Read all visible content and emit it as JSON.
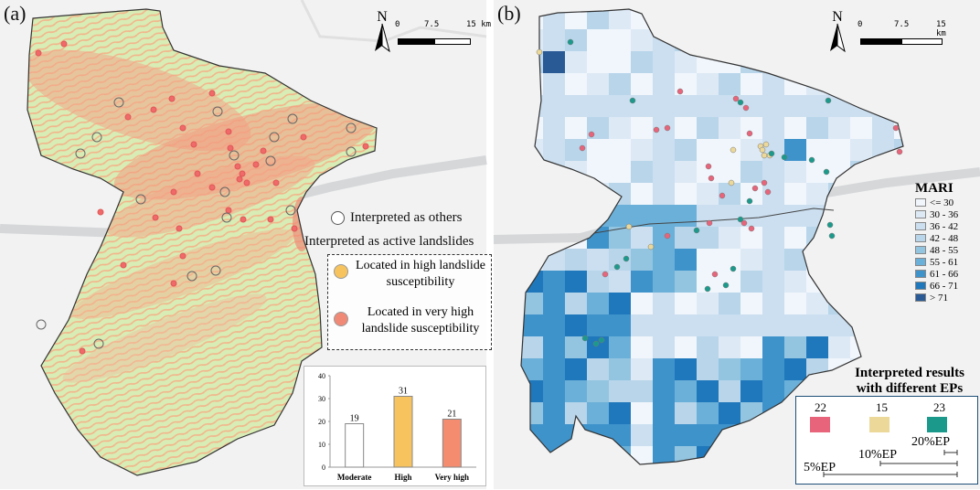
{
  "panels": {
    "a": {
      "label": "(a)",
      "north": "N",
      "scale": {
        "ticks": [
          "0",
          "7.5",
          "15 km"
        ]
      },
      "legend": {
        "others": "Interpreted  as others",
        "active_title": "Interpreted  as active landslides",
        "high": "Located in high landslide susceptibility",
        "high_line1": "Located in high landslide",
        "high_line2": "susceptibility",
        "very_high_line1": "Located in very high",
        "very_high_line2": "landslide susceptibility"
      },
      "colors": {
        "high": "#f6c35f",
        "very_high": "#f08a77",
        "others": "#ffffff",
        "base": "#d6ecb4",
        "hotspot": "#f39b80"
      }
    },
    "b": {
      "label": "(b)",
      "north": "N",
      "scale": {
        "ticks": [
          "0",
          "7.5",
          "15 km"
        ]
      },
      "mari_legend": {
        "title": "MARI",
        "classes": [
          {
            "label": "<= 30",
            "color": "#f1f6fc"
          },
          {
            "label": "30 - 36",
            "color": "#dde9f5"
          },
          {
            "label": "36 - 42",
            "color": "#cbdff0"
          },
          {
            "label": "42 - 48",
            "color": "#b8d5ea"
          },
          {
            "label": "48 - 55",
            "color": "#93c5e1"
          },
          {
            "label": "55 - 61",
            "color": "#6bb0d8"
          },
          {
            "label": "61 - 66",
            "color": "#3f93cb"
          },
          {
            "label": "66 - 71",
            "color": "#1f78bb"
          },
          {
            "label": "> 71",
            "color": "#2a5a96"
          }
        ]
      },
      "ep_title_line1": "Interpreted results",
      "ep_title_line2": "with different EPs",
      "ep_counts": [
        {
          "count": "22",
          "color": "#e8647a",
          "ep": "5%EP"
        },
        {
          "count": "15",
          "color": "#ecd99a",
          "ep": "10%EP"
        },
        {
          "count": "23",
          "color": "#1b9a8c",
          "ep": "20%EP"
        }
      ]
    }
  },
  "chart_data": {
    "type": "bar",
    "categories": [
      "Moderate",
      "High",
      "Very high"
    ],
    "values": [
      19,
      31,
      21
    ],
    "ylim": [
      0,
      40
    ],
    "yticks": [
      0,
      10,
      20,
      30,
      40
    ],
    "colors": [
      "#ffffff",
      "#f6c35f",
      "#f48c70"
    ],
    "title": "",
    "xlabel": "",
    "ylabel": ""
  }
}
